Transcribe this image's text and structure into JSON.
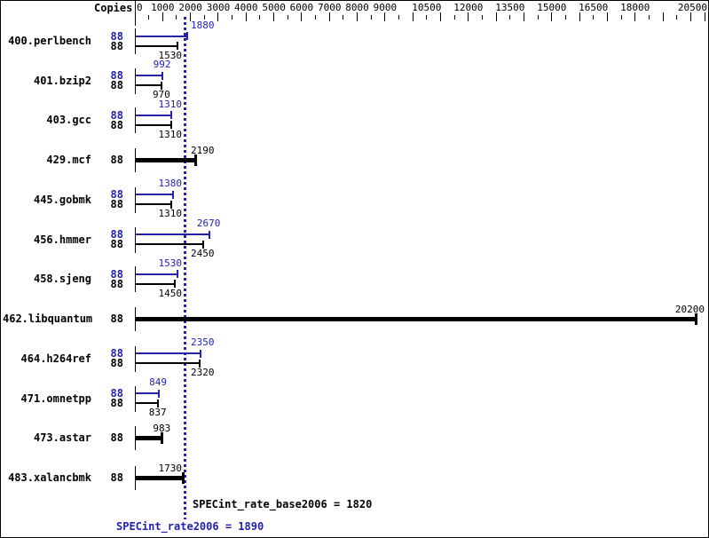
{
  "header": {
    "copies_label": "Copies"
  },
  "axis": {
    "unit_min": 0,
    "unit_max": 20500,
    "minor_tick_step": 500,
    "major_tick_step": 1000,
    "labeled_values": [
      0,
      1000,
      2000,
      3000,
      4000,
      5000,
      6000,
      7000,
      8000,
      9000,
      10500,
      12000,
      13500,
      15000,
      16500,
      18000,
      20500
    ]
  },
  "reference_lines": {
    "base": {
      "text": "SPECint_rate_base2006 = 1820",
      "value": 1820
    },
    "peak": {
      "text": "SPECint_rate2006 = 1890",
      "value": 1890
    }
  },
  "colors": {
    "peak_blue": "#2222aa",
    "base_black": "#000000",
    "dotted_line": "#2222bb"
  },
  "benchmarks": [
    {
      "name": "400.perlbench",
      "style": "pair",
      "peak_copies": "88",
      "base_copies": "88",
      "peak": 1880,
      "base": 1530
    },
    {
      "name": "401.bzip2",
      "style": "pair",
      "peak_copies": "88",
      "base_copies": "88",
      "peak": 992,
      "base": 970
    },
    {
      "name": "403.gcc",
      "style": "pair",
      "peak_copies": "88",
      "base_copies": "88",
      "peak": 1310,
      "base": 1310
    },
    {
      "name": "429.mcf",
      "style": "single",
      "copies": "88",
      "value": 2190
    },
    {
      "name": "445.gobmk",
      "style": "pair",
      "peak_copies": "88",
      "base_copies": "88",
      "peak": 1380,
      "base": 1310
    },
    {
      "name": "456.hmmer",
      "style": "pair",
      "peak_copies": "88",
      "base_copies": "88",
      "peak": 2670,
      "base": 2450
    },
    {
      "name": "458.sjeng",
      "style": "pair",
      "peak_copies": "88",
      "base_copies": "88",
      "peak": 1530,
      "base": 1450
    },
    {
      "name": "462.libquantum",
      "style": "single",
      "copies": "88",
      "value": 20200
    },
    {
      "name": "464.h264ref",
      "style": "pair",
      "peak_copies": "88",
      "base_copies": "88",
      "peak": 2350,
      "base": 2320
    },
    {
      "name": "471.omnetpp",
      "style": "pair",
      "peak_copies": "88",
      "base_copies": "88",
      "peak": 849,
      "base": 837
    },
    {
      "name": "473.astar",
      "style": "single",
      "copies": "88",
      "value": 983
    },
    {
      "name": "483.xalancbmk",
      "style": "single",
      "copies": "88",
      "value": 1730
    }
  ],
  "chart_data": {
    "type": "bar",
    "orientation": "horizontal",
    "title": "",
    "xlabel": "",
    "ylabel": "Copies",
    "categories": [
      "400.perlbench",
      "401.bzip2",
      "403.gcc",
      "429.mcf",
      "445.gobmk",
      "456.hmmer",
      "458.sjeng",
      "462.libquantum",
      "464.h264ref",
      "471.omnetpp",
      "473.astar",
      "483.xalancbmk"
    ],
    "copies": [
      88,
      88,
      88,
      88,
      88,
      88,
      88,
      88,
      88,
      88,
      88,
      88
    ],
    "series": [
      {
        "name": "SPECint_rate2006 (peak)",
        "color": "#2222aa",
        "values": [
          1880,
          992,
          1310,
          2190,
          1380,
          2670,
          1530,
          20200,
          2350,
          849,
          983,
          1730
        ]
      },
      {
        "name": "SPECint_rate_base2006 (base)",
        "color": "#000000",
        "values": [
          1530,
          970,
          1310,
          2190,
          1310,
          2450,
          1450,
          20200,
          2320,
          837,
          983,
          1730
        ]
      }
    ],
    "single_bar_categories": [
      "429.mcf",
      "462.libquantum",
      "473.astar",
      "483.xalancbmk"
    ],
    "xlim": [
      0,
      20750
    ],
    "x_tick_labels": [
      "0",
      "1000",
      "2000",
      "3000",
      "4000",
      "5000",
      "6000",
      "7000",
      "8000",
      "9000",
      "10500",
      "12000",
      "13500",
      "15000",
      "16500",
      "18000",
      "20500"
    ],
    "reference_values": {
      "SPECint_rate_base2006": 1820,
      "SPECint_rate2006": 1890
    },
    "grid": false,
    "legend_position": "none"
  }
}
